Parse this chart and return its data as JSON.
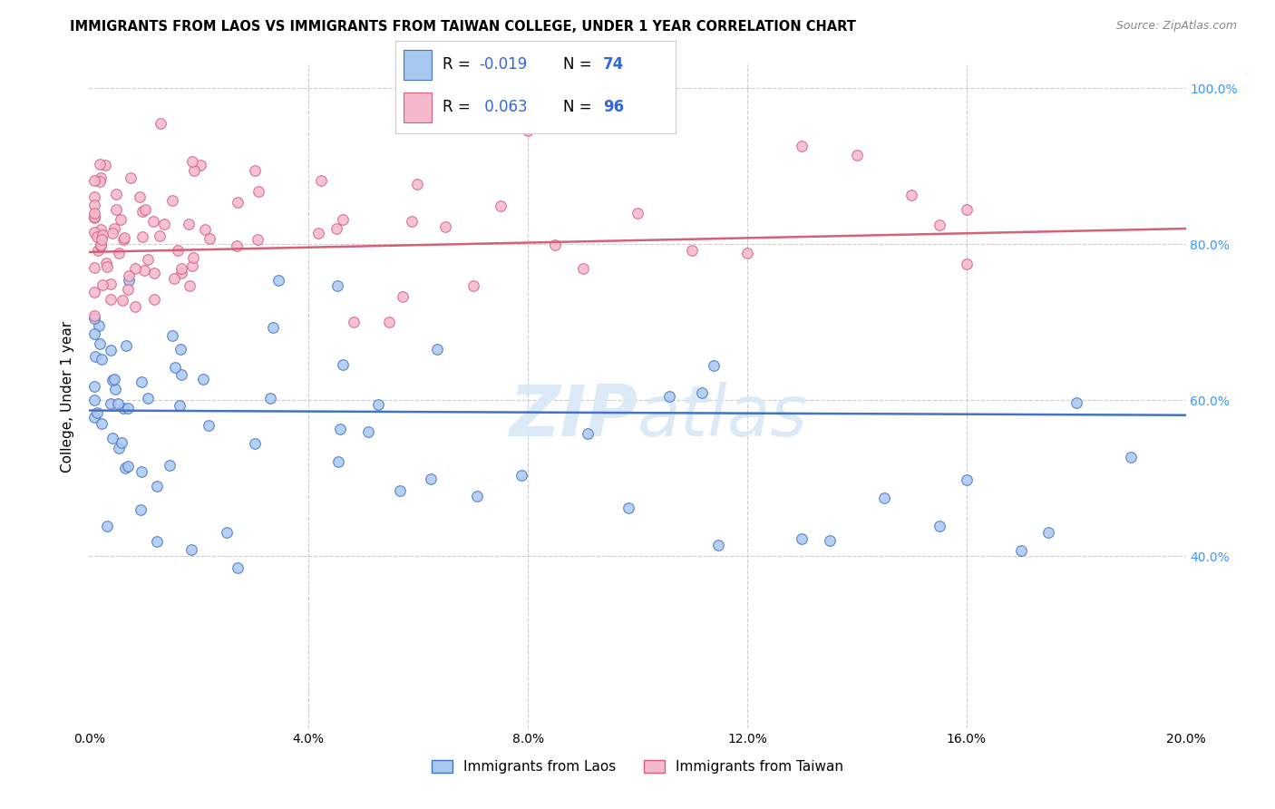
{
  "title": "IMMIGRANTS FROM LAOS VS IMMIGRANTS FROM TAIWAN COLLEGE, UNDER 1 YEAR CORRELATION CHART",
  "source": "Source: ZipAtlas.com",
  "ylabel": "College, Under 1 year",
  "legend_label1": "Immigrants from Laos",
  "legend_label2": "Immigrants from Taiwan",
  "R1": -0.019,
  "N1": 74,
  "R2": 0.063,
  "N2": 96,
  "color_blue": "#a8c8f0",
  "color_pink": "#f4b8cc",
  "trendline_blue": "#4472c4",
  "trendline_pink": "#d4607a",
  "background": "#ffffff",
  "watermark_zip": "ZIP",
  "watermark_atlas": "atlas",
  "xlim": [
    0.0,
    0.2
  ],
  "ylim": [
    0.18,
    1.03
  ],
  "x_ticks": [
    0.0,
    0.04,
    0.08,
    0.12,
    0.16,
    0.2
  ],
  "y_ticks": [
    0.4,
    0.6,
    0.8,
    1.0
  ],
  "grid_color": "#cccccc",
  "blue_trendline_y0": 0.587,
  "blue_trendline_y1": 0.581,
  "pink_trendline_y0": 0.79,
  "pink_trendline_y1": 0.82
}
